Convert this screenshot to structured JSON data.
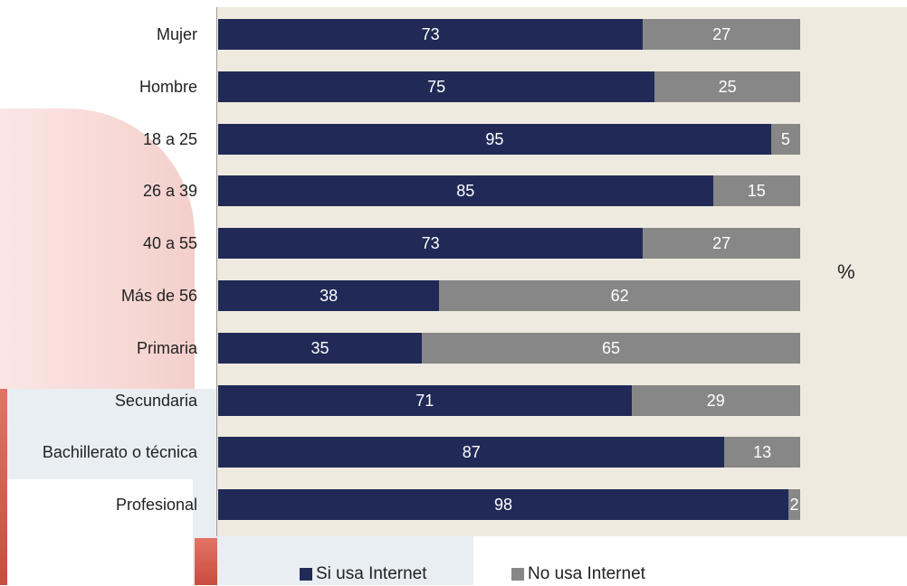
{
  "chart_data": {
    "type": "bar",
    "orientation": "horizontal",
    "stacked": true,
    "categories": [
      "Mujer",
      "Hombre",
      "18 a 25",
      "26 a 39",
      "40 a 55",
      "Más de 56",
      "Primaria",
      "Secundaria",
      "Bachillerato o técnica",
      "Profesional"
    ],
    "series": [
      {
        "name": "Si usa Internet",
        "color": "#212a57",
        "values": [
          73,
          75,
          95,
          85,
          73,
          38,
          35,
          71,
          87,
          98
        ]
      },
      {
        "name": "No usa Internet",
        "color": "#878787",
        "values": [
          27,
          25,
          5,
          15,
          27,
          62,
          65,
          29,
          13,
          2
        ]
      }
    ],
    "xlim": [
      0,
      100
    ],
    "unit_label": "%",
    "grid": false,
    "legend_position": "bottom"
  }
}
